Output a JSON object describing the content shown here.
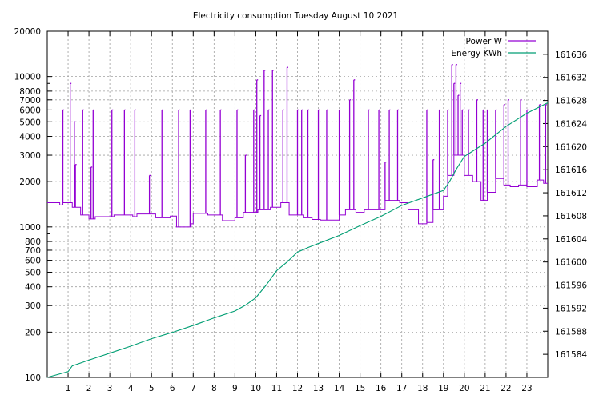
{
  "chart_data": {
    "type": "line",
    "title": "Electricity consumption Tuesday August 10 2021",
    "xlabel": "",
    "ylabel": "",
    "y2label": "",
    "grid": true,
    "legend_position": "top-right",
    "x_range": [
      0,
      24
    ],
    "x_ticks": [
      1,
      2,
      3,
      4,
      5,
      6,
      7,
      8,
      9,
      10,
      11,
      12,
      13,
      14,
      15,
      16,
      17,
      18,
      19,
      20,
      21,
      22,
      23
    ],
    "y_left": {
      "scale": "log",
      "range": [
        100,
        20000
      ],
      "ticks": [
        100,
        200,
        300,
        400,
        500,
        600,
        700,
        800,
        1000,
        2000,
        3000,
        4000,
        5000,
        6000,
        7000,
        8000,
        10000,
        20000
      ]
    },
    "y_right": {
      "scale": "linear",
      "range": [
        161580,
        161640
      ],
      "ticks": [
        161584,
        161588,
        161592,
        161596,
        161600,
        161604,
        161608,
        161612,
        161616,
        161620,
        161624,
        161628,
        161632,
        161636
      ]
    },
    "colors": {
      "power": "#9400d3",
      "energy": "#009e73",
      "grid": "#a0a0a0",
      "axis": "#000000"
    },
    "series": [
      {
        "name": "Power W",
        "axis": "left",
        "style": "steps",
        "baseline": [
          [
            0.0,
            1450
          ],
          [
            0.6,
            1400
          ],
          [
            0.75,
            1450
          ],
          [
            1.2,
            1350
          ],
          [
            1.6,
            1200
          ],
          [
            2.0,
            1130
          ],
          [
            2.3,
            1170
          ],
          [
            3.2,
            1200
          ],
          [
            4.1,
            1170
          ],
          [
            4.3,
            1220
          ],
          [
            5.2,
            1150
          ],
          [
            5.9,
            1180
          ],
          [
            6.2,
            1000
          ],
          [
            6.9,
            1050
          ],
          [
            7.0,
            1230
          ],
          [
            7.7,
            1200
          ],
          [
            8.4,
            1100
          ],
          [
            9.0,
            1150
          ],
          [
            9.4,
            1250
          ],
          [
            10.1,
            1300
          ],
          [
            10.7,
            1350
          ],
          [
            11.2,
            1450
          ],
          [
            11.6,
            1200
          ],
          [
            12.3,
            1150
          ],
          [
            12.7,
            1120
          ],
          [
            13.1,
            1110
          ],
          [
            14.0,
            1200
          ],
          [
            14.3,
            1300
          ],
          [
            14.8,
            1250
          ],
          [
            15.2,
            1300
          ],
          [
            15.8,
            1300
          ],
          [
            16.2,
            1500
          ],
          [
            16.9,
            1450
          ],
          [
            17.3,
            1300
          ],
          [
            17.8,
            1050
          ],
          [
            18.2,
            1070
          ],
          [
            18.5,
            1300
          ],
          [
            19.0,
            1600
          ],
          [
            19.2,
            2200
          ],
          [
            19.5,
            3000
          ],
          [
            20.0,
            2200
          ],
          [
            20.4,
            2000
          ],
          [
            20.8,
            1500
          ],
          [
            21.1,
            1700
          ],
          [
            21.5,
            2100
          ],
          [
            21.9,
            1900
          ],
          [
            22.2,
            1850
          ],
          [
            22.6,
            1900
          ],
          [
            23.0,
            1850
          ],
          [
            23.5,
            2050
          ],
          [
            23.8,
            1950
          ],
          [
            24.0,
            1950
          ]
        ],
        "spikes": [
          [
            0.75,
            6000
          ],
          [
            1.1,
            9000
          ],
          [
            1.3,
            5000
          ],
          [
            1.35,
            2600
          ],
          [
            1.7,
            6000
          ],
          [
            2.1,
            2500
          ],
          [
            2.2,
            6000
          ],
          [
            3.1,
            6000
          ],
          [
            3.7,
            6000
          ],
          [
            4.2,
            6000
          ],
          [
            4.9,
            2200
          ],
          [
            5.5,
            6000
          ],
          [
            6.3,
            6000
          ],
          [
            6.85,
            6000
          ],
          [
            7.6,
            6000
          ],
          [
            8.3,
            6000
          ],
          [
            9.1,
            6000
          ],
          [
            9.5,
            3000
          ],
          [
            9.9,
            6000
          ],
          [
            10.05,
            9500
          ],
          [
            10.2,
            5500
          ],
          [
            10.4,
            11000
          ],
          [
            10.6,
            6000
          ],
          [
            10.8,
            11000
          ],
          [
            11.3,
            6000
          ],
          [
            11.5,
            11500
          ],
          [
            12.0,
            6000
          ],
          [
            12.2,
            6000
          ],
          [
            12.5,
            6000
          ],
          [
            13.0,
            6000
          ],
          [
            13.4,
            6000
          ],
          [
            14.0,
            6000
          ],
          [
            14.5,
            7000
          ],
          [
            14.7,
            9500
          ],
          [
            15.4,
            6000
          ],
          [
            15.9,
            6000
          ],
          [
            16.2,
            2700
          ],
          [
            16.4,
            6000
          ],
          [
            16.8,
            6000
          ],
          [
            18.2,
            6000
          ],
          [
            18.5,
            2800
          ],
          [
            18.8,
            6000
          ],
          [
            19.2,
            6000
          ],
          [
            19.4,
            12000
          ],
          [
            19.5,
            9000
          ],
          [
            19.6,
            12000
          ],
          [
            19.7,
            7500
          ],
          [
            19.8,
            9000
          ],
          [
            19.9,
            6000
          ],
          [
            20.2,
            6000
          ],
          [
            20.6,
            7000
          ],
          [
            20.9,
            6000
          ],
          [
            21.1,
            6000
          ],
          [
            21.5,
            6000
          ],
          [
            21.9,
            6500
          ],
          [
            22.1,
            7000
          ],
          [
            22.7,
            7000
          ],
          [
            23.0,
            6000
          ],
          [
            23.6,
            6500
          ],
          [
            23.9,
            6500
          ]
        ]
      },
      {
        "name": "Energy KWh",
        "axis": "right",
        "style": "line",
        "x": [
          0.0,
          1.0,
          1.2,
          2.0,
          3.0,
          4.0,
          5.0,
          6.0,
          7.0,
          8.0,
          9.0,
          9.5,
          10.0,
          10.5,
          11.0,
          11.5,
          12.0,
          12.5,
          13.0,
          14.0,
          15.0,
          16.0,
          17.0,
          18.0,
          19.0,
          19.3,
          19.6,
          20.0,
          21.0,
          22.0,
          23.0,
          24.0
        ],
        "values": [
          161580.0,
          161581.0,
          161582.0,
          161583.0,
          161584.2,
          161585.4,
          161586.7,
          161587.8,
          161589.0,
          161590.3,
          161591.5,
          161592.5,
          161593.8,
          161596.0,
          161598.5,
          161600.0,
          161601.7,
          161602.5,
          161603.2,
          161604.6,
          161606.3,
          161607.9,
          161609.8,
          161611.1,
          161612.4,
          161614.0,
          161616.0,
          161618.3,
          161620.6,
          161623.5,
          161625.8,
          161627.6
        ]
      }
    ]
  }
}
